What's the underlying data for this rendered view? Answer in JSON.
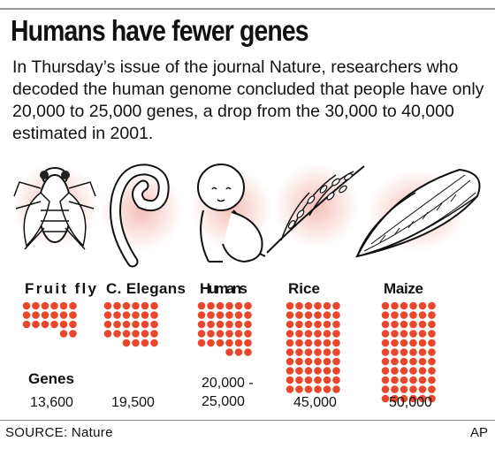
{
  "title": "Humans have fewer genes",
  "subtitle": "In Thursday’s issue of the journal Nature, researchers who decoded the human genome concluded that people have only 20,000 to 25,000 genes, a drop from the 30,000 to 40,000 estimated in 2001.",
  "source": "SOURCE: Nature",
  "credit": "AP",
  "icons": [
    "fruit-fly-icon",
    "worm-icon",
    "baby-icon",
    "rice-icon",
    "maize-icon"
  ],
  "colors": {
    "dots": "#e8472b",
    "glow": "#f4b8b0",
    "text": "#111111"
  },
  "chart_data": {
    "type": "pictograph",
    "title": "",
    "row_label": "Genes",
    "categories": [
      "Fruit fly",
      "C. Elegans",
      "Humans",
      "Rice",
      "Maize"
    ],
    "value_labels": [
      "13,600",
      "19,500",
      "20,000 -\n25,000",
      "45,000",
      "50,000"
    ],
    "values": [
      13600,
      19500,
      25000,
      45000,
      50000
    ],
    "value_ranges": [
      null,
      null,
      [
        20000,
        25000
      ],
      null,
      null
    ],
    "dot_grid_columns": 6,
    "dots_shown": [
      20,
      28,
      33,
      60,
      66
    ]
  }
}
